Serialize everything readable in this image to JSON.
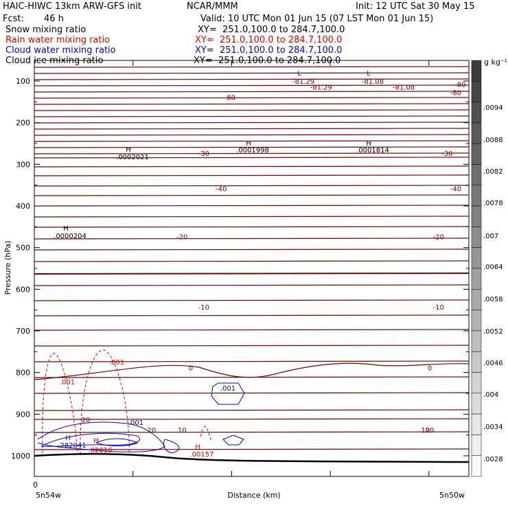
{
  "header": {
    "model": "HAIC-HIWC 13km ARW-GFS init",
    "org": "NCAR/MMM",
    "init": "Init: 12 UTC Sat 30 May 15",
    "fcst_label": "Fcst:",
    "fcst_value": "46 h",
    "valid": "Valid: 10 UTC Mon 01 Jun 15 (07 LST Mon 01 Jun 15)"
  },
  "fields": [
    {
      "label": "Snow mixing ratio",
      "xy": "XY=  251.0,100.0 to 284.7,100.0",
      "color": "#000000"
    },
    {
      "label": "Rain water mixing ratio",
      "xy": "XY=  251.0,100.0 to 284.7,100.0",
      "color": "#e00000"
    },
    {
      "label": "Cloud water mixing ratio",
      "xy": "XY=  251.0,100.0 to 284.7,100.0",
      "color": "#0000e0"
    },
    {
      "label": "Cloud ice mixing ratio",
      "xy": "XY=  251.0,100.0 to 284.7,100.0",
      "color": "#000000"
    }
  ],
  "colorbar": {
    "unit": "g kg⁻¹",
    "labels": [
      ".0094",
      ".0088",
      ".0082",
      ".0078",
      ".007",
      ".0064",
      ".0058",
      ".0052",
      ".0046",
      ".004",
      ".0034",
      ".0028"
    ]
  },
  "chart_data": {
    "type": "contour",
    "ylabel": "Pressure (hPa)",
    "xlabel": "Distance (km)",
    "x_start_label": "5n54w",
    "x_end_label": "5n50w",
    "x_zero_label": "0",
    "yticks": [
      100,
      200,
      300,
      400,
      500,
      600,
      700,
      800,
      900,
      1000
    ],
    "ylim": [
      1050,
      50
    ],
    "contour_labels": [
      {
        "text": "-80",
        "x": 0.45,
        "p": 155
      },
      {
        "text": "-80",
        "x": 0.97,
        "p": 140
      },
      {
        "text": "-80",
        "x": 0.98,
        "p": 114
      },
      {
        "text": "-81.29",
        "x": 0.66,
        "p": 122
      },
      {
        "text": "-81.08",
        "x": 0.85,
        "p": 122
      },
      {
        "text": "-40",
        "x": 0.43,
        "p": 440
      },
      {
        "text": "-40",
        "x": 0.97,
        "p": 440
      },
      {
        "text": "-30",
        "x": 0.39,
        "p": 330
      },
      {
        "text": "-30",
        "x": 0.95,
        "p": 330
      },
      {
        "text": "-20",
        "x": 0.34,
        "p": 590
      },
      {
        "text": "-20",
        "x": 0.93,
        "p": 590
      },
      {
        "text": "-10",
        "x": 0.39,
        "p": 810
      },
      {
        "text": "-10",
        "x": 0.93,
        "p": 810
      },
      {
        "text": "0",
        "x": 0.36,
        "p": 1000
      },
      {
        "text": "0",
        "x": 0.91,
        "p": 1000
      },
      {
        "text": "10",
        "x": 0.34,
        "p": 1240
      },
      {
        "text": "10",
        "x": 0.9,
        "p": 1240
      },
      {
        "text": "20",
        "x": 0.27,
        "p": 1520
      },
      {
        "text": "20",
        "x": 0.91,
        "p": 1520
      }
    ],
    "extrema": [
      {
        "mark": "L",
        "value": "-81.29",
        "x": 0.624
      },
      {
        "mark": "L",
        "value": "-81.08",
        "x": 0.78
      },
      {
        "mark": "H",
        "value": ".0002021",
        "x": 0.2
      },
      {
        "mark": "H",
        "value": ".0001998",
        "x": 0.45
      },
      {
        "mark": "H",
        "value": ".0001814",
        "x": 0.72
      },
      {
        "mark": "H",
        "value": ".0000204",
        "x": 0.06
      },
      {
        "mark": "H",
        "value": ".282041",
        "x": 0.07
      },
      {
        "mark": "H",
        "value": ".02816",
        "x": 0.14
      },
      {
        "mark": "H",
        "value": ".00157",
        "x": 0.36
      }
    ],
    "rain_labels": [
      ".001",
      ".001"
    ],
    "cloud_labels": [
      ".001",
      ".001"
    ],
    "snow_label": "20"
  }
}
